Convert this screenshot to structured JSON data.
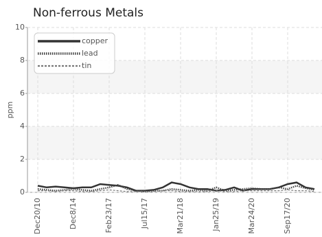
{
  "chart_data": {
    "type": "line",
    "title": "Non-ferrous Metals",
    "y_label": "ppm",
    "categories": [
      "Dec20/10",
      null,
      null,
      null,
      "Dec8/14",
      null,
      null,
      null,
      "Feb23/17",
      null,
      null,
      null,
      "Jul15/17",
      null,
      null,
      null,
      "Mar21/18",
      null,
      null,
      null,
      "Jan25/19",
      null,
      null,
      null,
      "Mar24/20",
      null,
      null,
      null,
      "Sep17/20",
      null,
      null,
      null
    ],
    "series": [
      {
        "name": "copper",
        "color": "#333333",
        "line_style": "solid",
        "values": [
          0.4,
          0.3,
          0.35,
          0.3,
          0.25,
          0.3,
          0.3,
          0.5,
          0.45,
          0.4,
          0.3,
          0.1,
          0.1,
          0.15,
          0.3,
          0.6,
          0.5,
          0.3,
          0.2,
          0.2,
          0.1,
          0.15,
          0.3,
          0.1,
          0.2,
          0.2,
          0.2,
          0.3,
          0.5,
          0.6,
          0.3,
          0.2
        ]
      },
      {
        "name": "lead",
        "color": "#444444",
        "line_style": "dotted",
        "values": [
          0.2,
          0.15,
          0.1,
          0.15,
          0.2,
          0.15,
          0.1,
          0.2,
          0.3,
          0.45,
          0.2,
          0.1,
          0.05,
          0.1,
          0.1,
          0.2,
          0.15,
          0.1,
          0.15,
          0.1,
          0.3,
          0.1,
          0.15,
          0.2,
          0.25,
          0.2,
          0.2,
          0.3,
          0.2,
          0.4,
          0.25,
          0.15
        ]
      },
      {
        "name": "tin",
        "color": "#777777",
        "line_style": "dashed",
        "values": [
          0.1,
          0.1,
          0.05,
          0.1,
          0.1,
          0.05,
          0.05,
          0.1,
          0.15,
          0.1,
          0.05,
          0.05,
          0.05,
          0.05,
          0.1,
          0.1,
          0.05,
          0.05,
          0.05,
          0.05,
          0.1,
          0.05,
          0.05,
          0.1,
          0.1,
          0.1,
          0.1,
          0.1,
          0.15,
          0.1,
          0.1,
          0.05
        ]
      }
    ],
    "ylim": [
      0,
      10
    ],
    "yticks": [
      0,
      2,
      4,
      6,
      8,
      10
    ],
    "grid": true,
    "legend": "upper left"
  }
}
